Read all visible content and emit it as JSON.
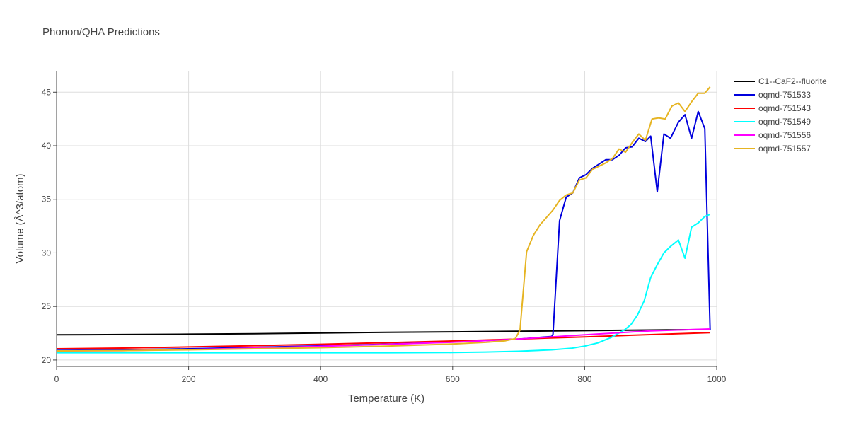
{
  "chart_data": {
    "type": "line",
    "title": "Phonon/QHA Predictions",
    "xlabel": "Temperature (K)",
    "ylabel": "Volume (Å^3/atom)",
    "xlim": [
      0,
      1000
    ],
    "ylim": [
      19.4,
      47
    ],
    "x_ticks": [
      0,
      200,
      400,
      600,
      800,
      1000
    ],
    "y_ticks": [
      20,
      25,
      30,
      35,
      40,
      45
    ],
    "grid": true,
    "legend_position": "top-right",
    "series": [
      {
        "name": "C1--CaF2--fluorite",
        "color": "#000000",
        "x": [
          0,
          100,
          200,
          300,
          400,
          500,
          600,
          700,
          800,
          900,
          990
        ],
        "y": [
          22.35,
          22.38,
          22.41,
          22.46,
          22.52,
          22.58,
          22.63,
          22.69,
          22.74,
          22.8,
          22.85
        ]
      },
      {
        "name": "oqmd-751533",
        "color": "#0000dd",
        "x": [
          0,
          100,
          200,
          300,
          400,
          500,
          600,
          700,
          750,
          752,
          762,
          772,
          782,
          792,
          802,
          812,
          822,
          832,
          842,
          852,
          862,
          872,
          882,
          892,
          900,
          910,
          920,
          930,
          942,
          952,
          962,
          972,
          982,
          990
        ],
        "y": [
          20.9,
          20.95,
          21.05,
          21.18,
          21.32,
          21.48,
          21.7,
          21.95,
          22.2,
          22.4,
          33.0,
          35.2,
          35.6,
          37.0,
          37.3,
          37.9,
          38.3,
          38.7,
          38.7,
          39.1,
          39.8,
          39.9,
          40.7,
          40.4,
          40.9,
          35.7,
          41.1,
          40.7,
          42.2,
          42.9,
          40.7,
          43.2,
          41.6,
          22.8
        ]
      },
      {
        "name": "oqmd-751543",
        "color": "#ff0000",
        "x": [
          0,
          100,
          200,
          300,
          400,
          500,
          600,
          700,
          800,
          900,
          990
        ],
        "y": [
          21.05,
          21.12,
          21.22,
          21.34,
          21.47,
          21.62,
          21.78,
          21.96,
          22.16,
          22.37,
          22.55
        ]
      },
      {
        "name": "oqmd-751549",
        "color": "#00ffff",
        "x": [
          0,
          100,
          200,
          300,
          400,
          500,
          600,
          650,
          700,
          750,
          780,
          800,
          820,
          840,
          860,
          870,
          880,
          890,
          900,
          910,
          920,
          930,
          942,
          952,
          962,
          972,
          982,
          990
        ],
        "y": [
          20.68,
          20.68,
          20.68,
          20.68,
          20.68,
          20.68,
          20.7,
          20.75,
          20.82,
          20.95,
          21.1,
          21.3,
          21.6,
          22.1,
          22.8,
          23.3,
          24.2,
          25.5,
          27.7,
          28.9,
          30.0,
          30.6,
          31.2,
          29.5,
          32.4,
          32.8,
          33.4,
          33.6
        ]
      },
      {
        "name": "oqmd-751556",
        "color": "#ff00ff",
        "x": [
          0,
          100,
          200,
          300,
          400,
          500,
          600,
          700,
          800,
          900,
          990
        ],
        "y": [
          20.85,
          20.88,
          20.98,
          21.12,
          21.28,
          21.46,
          21.66,
          21.96,
          22.36,
          22.72,
          22.9
        ]
      },
      {
        "name": "oqmd-751557",
        "color": "#e6b422",
        "x": [
          0,
          100,
          200,
          300,
          400,
          500,
          600,
          650,
          680,
          695,
          702,
          712,
          722,
          732,
          742,
          752,
          762,
          772,
          782,
          792,
          802,
          812,
          822,
          832,
          842,
          852,
          862,
          872,
          882,
          892,
          902,
          912,
          922,
          932,
          942,
          952,
          962,
          972,
          982,
          990
        ],
        "y": [
          20.85,
          20.88,
          20.95,
          21.05,
          21.15,
          21.3,
          21.5,
          21.65,
          21.8,
          22.0,
          22.8,
          30.1,
          31.6,
          32.6,
          33.3,
          34.0,
          34.9,
          35.4,
          35.6,
          36.8,
          37.0,
          37.8,
          38.1,
          38.4,
          38.8,
          39.7,
          39.4,
          40.3,
          41.1,
          40.5,
          42.5,
          42.6,
          42.5,
          43.7,
          44.0,
          43.2,
          44.1,
          44.9,
          44.9,
          45.5
        ]
      }
    ]
  }
}
